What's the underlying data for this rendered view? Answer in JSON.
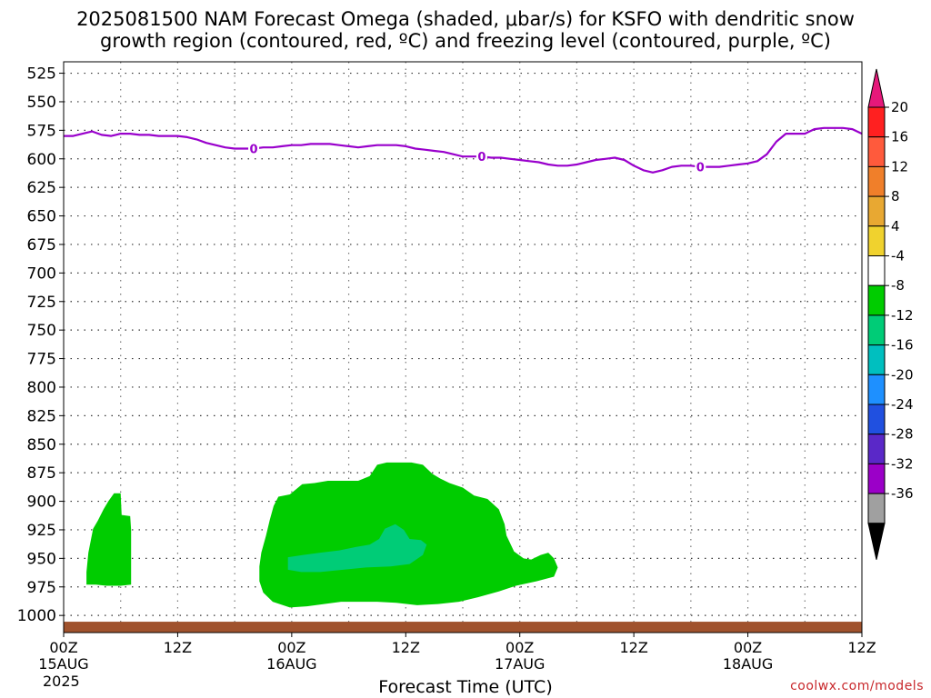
{
  "chart_data": {
    "type": "heatmap",
    "title_line1": "2025081500 NAM Forecast Omega (shaded, μbar/s) for KSFO with dendritic snow",
    "title_line2": "growth region (contoured, red, ºC) and freezing level (contoured, purple, ºC)",
    "xlabel": "Forecast Time (UTC)",
    "credit": "coolwx.com/models",
    "y_axis": {
      "scale": "pressure (hPa), increasing downward",
      "range": [
        515,
        1015
      ],
      "ticks": [
        525,
        550,
        575,
        600,
        625,
        650,
        675,
        700,
        725,
        750,
        775,
        800,
        825,
        850,
        875,
        900,
        925,
        950,
        975,
        1000
      ],
      "grid": true
    },
    "x_axis": {
      "range_hours": [
        0,
        84
      ],
      "ticks": [
        {
          "hour": 0,
          "label": "00Z",
          "sub": "15AUG",
          "sub2": "2025"
        },
        {
          "hour": 12,
          "label": "12Z",
          "sub": "",
          "sub2": ""
        },
        {
          "hour": 24,
          "label": "00Z",
          "sub": "16AUG",
          "sub2": ""
        },
        {
          "hour": 36,
          "label": "12Z",
          "sub": "",
          "sub2": ""
        },
        {
          "hour": 48,
          "label": "00Z",
          "sub": "17AUG",
          "sub2": ""
        },
        {
          "hour": 60,
          "label": "12Z",
          "sub": "",
          "sub2": ""
        },
        {
          "hour": 72,
          "label": "00Z",
          "sub": "18AUG",
          "sub2": ""
        },
        {
          "hour": 84,
          "label": "12Z",
          "sub": "",
          "sub2": ""
        }
      ],
      "minor_grid_hours": [
        6,
        18,
        30,
        42,
        54,
        66,
        78
      ]
    },
    "freezing_level": {
      "color": "#9900cc",
      "label": "0",
      "label_hours": [
        20,
        44,
        67
      ],
      "points": [
        [
          0,
          580
        ],
        [
          1,
          580
        ],
        [
          2,
          578
        ],
        [
          3,
          576
        ],
        [
          4,
          579
        ],
        [
          5,
          580
        ],
        [
          6,
          578
        ],
        [
          7,
          578
        ],
        [
          8,
          579
        ],
        [
          9,
          579
        ],
        [
          10,
          580
        ],
        [
          11,
          580
        ],
        [
          12,
          580
        ],
        [
          13,
          581
        ],
        [
          14,
          583
        ],
        [
          15,
          586
        ],
        [
          16,
          588
        ],
        [
          17,
          590
        ],
        [
          18,
          591
        ],
        [
          19,
          591
        ],
        [
          20,
          591
        ],
        [
          21,
          590
        ],
        [
          22,
          590
        ],
        [
          23,
          589
        ],
        [
          24,
          588
        ],
        [
          25,
          588
        ],
        [
          26,
          587
        ],
        [
          27,
          587
        ],
        [
          28,
          587
        ],
        [
          29,
          588
        ],
        [
          30,
          589
        ],
        [
          31,
          590
        ],
        [
          32,
          589
        ],
        [
          33,
          588
        ],
        [
          34,
          588
        ],
        [
          35,
          588
        ],
        [
          36,
          589
        ],
        [
          37,
          591
        ],
        [
          38,
          592
        ],
        [
          39,
          593
        ],
        [
          40,
          594
        ],
        [
          41,
          596
        ],
        [
          42,
          598
        ],
        [
          43,
          598
        ],
        [
          44,
          598
        ],
        [
          45,
          599
        ],
        [
          46,
          599
        ],
        [
          47,
          600
        ],
        [
          48,
          601
        ],
        [
          49,
          602
        ],
        [
          50,
          603
        ],
        [
          51,
          605
        ],
        [
          52,
          606
        ],
        [
          53,
          606
        ],
        [
          54,
          605
        ],
        [
          55,
          603
        ],
        [
          56,
          601
        ],
        [
          57,
          600
        ],
        [
          58,
          599
        ],
        [
          59,
          601
        ],
        [
          60,
          606
        ],
        [
          61,
          610
        ],
        [
          62,
          612
        ],
        [
          63,
          610
        ],
        [
          64,
          607
        ],
        [
          65,
          606
        ],
        [
          66,
          606
        ],
        [
          67,
          607
        ],
        [
          68,
          607
        ],
        [
          69,
          607
        ],
        [
          70,
          606
        ],
        [
          71,
          605
        ],
        [
          72,
          604
        ],
        [
          73,
          602
        ],
        [
          74,
          596
        ],
        [
          75,
          585
        ],
        [
          76,
          578
        ],
        [
          77,
          578
        ],
        [
          78,
          578
        ],
        [
          79,
          574
        ],
        [
          80,
          573
        ],
        [
          81,
          573
        ],
        [
          82,
          573
        ],
        [
          83,
          574
        ],
        [
          84,
          578
        ]
      ]
    },
    "omega_regions": [
      {
        "name": "omega -8 to -4 (green)",
        "level": -4,
        "polygon": [
          [
            2.4,
            973
          ],
          [
            2.4,
            962
          ],
          [
            2.6,
            945
          ],
          [
            3.1,
            924
          ],
          [
            3.6,
            917
          ],
          [
            4.2,
            907
          ],
          [
            4.7,
            900
          ],
          [
            5.3,
            893
          ],
          [
            6.0,
            893
          ],
          [
            6.1,
            912
          ],
          [
            7.0,
            913
          ],
          [
            7.1,
            925
          ],
          [
            7.1,
            973
          ],
          [
            6.0,
            974
          ],
          [
            4.5,
            974
          ],
          [
            3.4,
            973
          ]
        ]
      },
      {
        "name": "omega -8 to -4 (green)",
        "level": -4,
        "polygon": [
          [
            20.6,
            957
          ],
          [
            20.8,
            945
          ],
          [
            21.3,
            930
          ],
          [
            21.7,
            916
          ],
          [
            22.1,
            904
          ],
          [
            22.6,
            896
          ],
          [
            23.8,
            894
          ],
          [
            25.1,
            885
          ],
          [
            26.4,
            884
          ],
          [
            27.8,
            882
          ],
          [
            29.5,
            882
          ],
          [
            31.0,
            882
          ],
          [
            32.2,
            878
          ],
          [
            33.0,
            868
          ],
          [
            34.0,
            866
          ],
          [
            35.6,
            866
          ],
          [
            36.6,
            866
          ],
          [
            37.8,
            868
          ],
          [
            38.8,
            876
          ],
          [
            39.6,
            880
          ],
          [
            40.6,
            884
          ],
          [
            42.0,
            888
          ],
          [
            43.2,
            895
          ],
          [
            44.6,
            898
          ],
          [
            45.8,
            907
          ],
          [
            46.4,
            920
          ],
          [
            46.6,
            930
          ],
          [
            47.4,
            944
          ],
          [
            48.4,
            950
          ],
          [
            49.2,
            951
          ],
          [
            50.2,
            947
          ],
          [
            51.0,
            945
          ],
          [
            51.6,
            950
          ],
          [
            52.0,
            958
          ],
          [
            51.6,
            966
          ],
          [
            49.8,
            970
          ],
          [
            47.6,
            974
          ],
          [
            45.8,
            979
          ],
          [
            43.6,
            984
          ],
          [
            41.6,
            988
          ],
          [
            39.4,
            990
          ],
          [
            37.2,
            991
          ],
          [
            35.0,
            989
          ],
          [
            33.0,
            988
          ],
          [
            31.0,
            988
          ],
          [
            29.2,
            988
          ],
          [
            27.4,
            990
          ],
          [
            25.6,
            992
          ],
          [
            23.8,
            993
          ],
          [
            22.0,
            988
          ],
          [
            21.0,
            980
          ],
          [
            20.6,
            970
          ]
        ]
      },
      {
        "name": "omega -12 to -8 (teal green)",
        "level": -8,
        "polygon": [
          [
            23.6,
            949
          ],
          [
            25.2,
            947
          ],
          [
            27.0,
            945
          ],
          [
            29.0,
            943
          ],
          [
            30.8,
            940
          ],
          [
            32.2,
            938
          ],
          [
            33.2,
            933
          ],
          [
            33.8,
            924
          ],
          [
            34.9,
            920
          ],
          [
            35.8,
            925
          ],
          [
            36.4,
            933
          ],
          [
            37.6,
            934
          ],
          [
            38.2,
            938
          ],
          [
            37.8,
            947
          ],
          [
            36.4,
            955
          ],
          [
            34.4,
            957
          ],
          [
            31.8,
            958
          ],
          [
            29.4,
            960
          ],
          [
            27.0,
            962
          ],
          [
            25.0,
            962
          ],
          [
            23.6,
            960
          ]
        ]
      }
    ],
    "ground": {
      "color": "#a0522d",
      "top_hpa": 1005.5
    },
    "colorbar": {
      "levels": [
        20,
        16,
        12,
        8,
        4,
        -4,
        -8,
        -12,
        -16,
        -20,
        -24,
        -28,
        -32,
        -36
      ],
      "colors": [
        "#ff2020",
        "#ff5a3c",
        "#f07f2a",
        "#e8a832",
        "#f0d22e",
        "#ffffff",
        "#00cc00",
        "#00cc77",
        "#00bfbf",
        "#1e90ff",
        "#2050e0",
        "#5a28c8",
        "#9b00c8",
        "#a0a0a0"
      ],
      "top_arrow_color": "#e6187a",
      "bottom_arrow_color": "#000000"
    }
  }
}
